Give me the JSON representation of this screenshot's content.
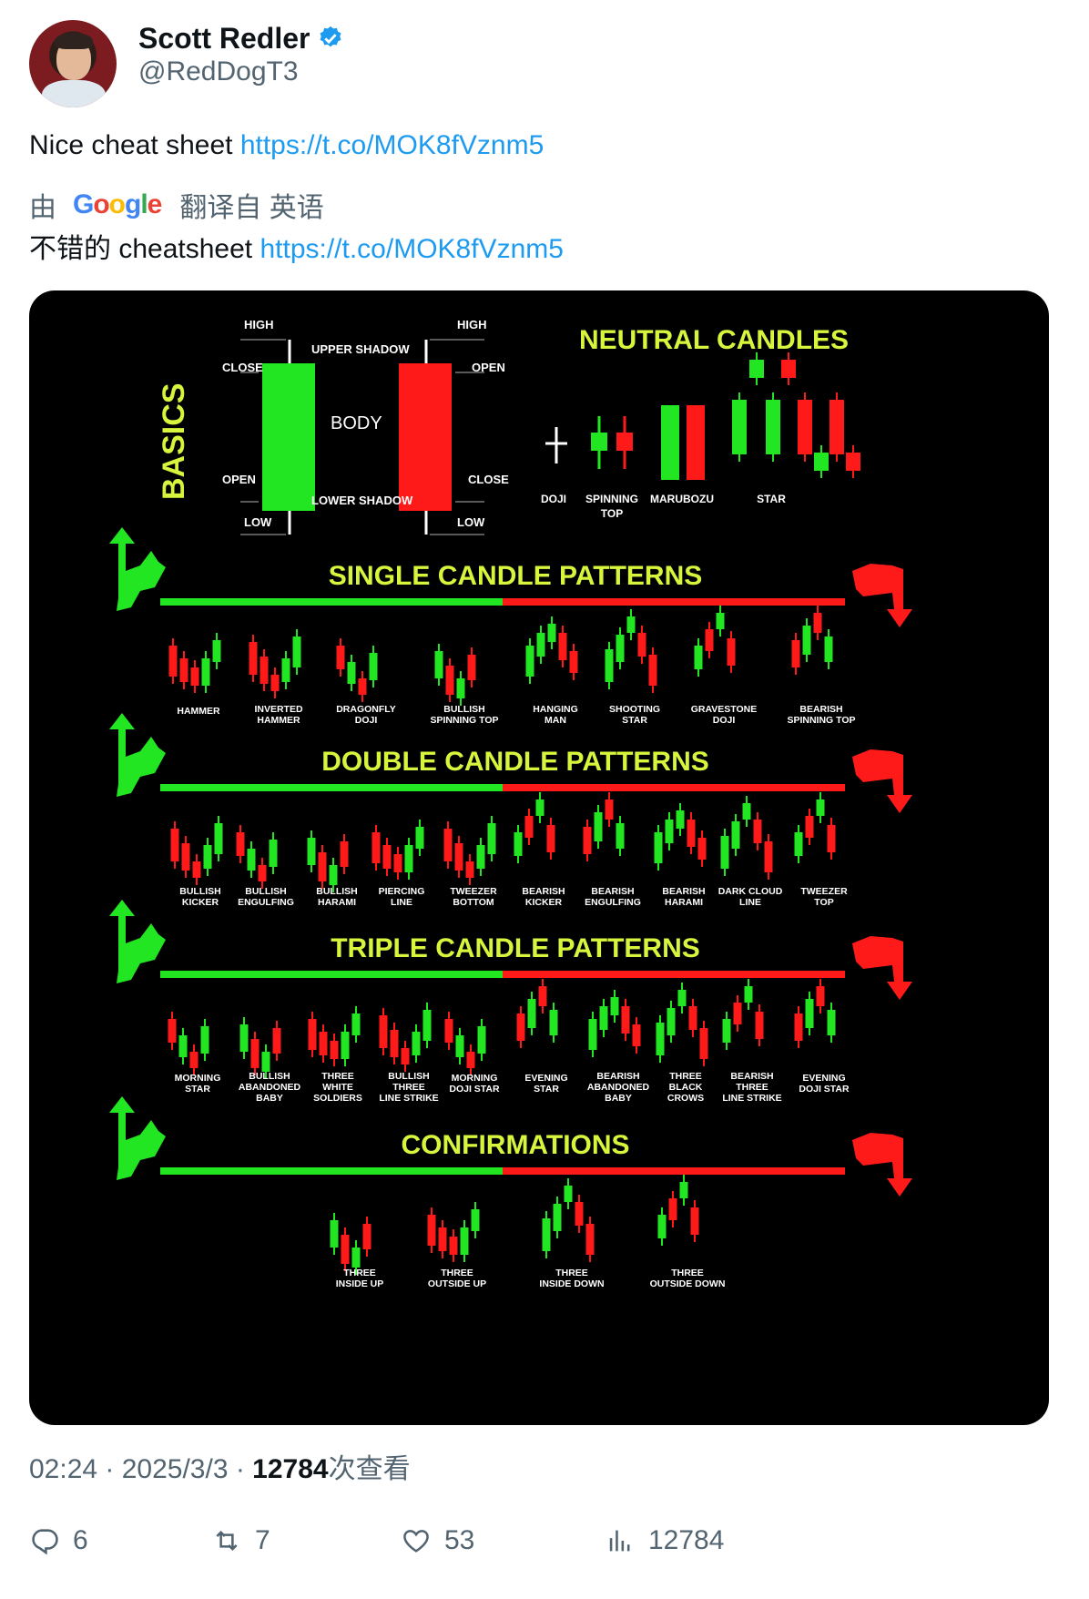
{
  "author": {
    "display_name": "Scott Redler",
    "handle": "@RedDogT3"
  },
  "tweet": {
    "text": "Nice cheat sheet",
    "link": "https://t.co/MOK8fVznm5",
    "translation_prefix": "由",
    "translation_provider": "Google",
    "translation_suffix": "翻译自 英语",
    "translated_text": "不错的 cheatsheet",
    "translated_link": "https://t.co/MOK8fVznm5"
  },
  "image": {
    "basics": {
      "title": "BASICS",
      "high_left": "HIGH",
      "high_right": "HIGH",
      "upper_shadow": "UPPER SHADOW",
      "close_left": "CLOSE",
      "open_right": "OPEN",
      "body": "BODY",
      "open_left": "OPEN",
      "close_right": "CLOSE",
      "lower_shadow": "LOWER SHADOW",
      "low_left": "LOW",
      "low_right": "LOW"
    },
    "neutral": {
      "title": "NEUTRAL CANDLES",
      "labels": [
        "DOJI",
        "SPINNING",
        "TOP",
        "MARUBOZU",
        "STAR"
      ]
    },
    "single": {
      "title": "SINGLE CANDLE PATTERNS",
      "labels": [
        [
          "HAMMER"
        ],
        [
          "INVERTED",
          "HAMMER"
        ],
        [
          "DRAGONFLY",
          "DOJI"
        ],
        [
          "BULLISH",
          "SPINNING TOP"
        ],
        [
          "HANGING",
          "MAN"
        ],
        [
          "SHOOTING",
          "STAR"
        ],
        [
          "GRAVESTONE",
          "DOJI"
        ],
        [
          "BEARISH",
          "SPINNING TOP"
        ]
      ]
    },
    "double": {
      "title": "DOUBLE CANDLE PATTERNS",
      "labels": [
        [
          "BULLISH",
          "KICKER"
        ],
        [
          "BULLISH",
          "ENGULFING"
        ],
        [
          "BULLISH",
          "HARAMI"
        ],
        [
          "PIERCING",
          "LINE"
        ],
        [
          "TWEEZER",
          "BOTTOM"
        ],
        [
          "BEARISH",
          "KICKER"
        ],
        [
          "BEARISH",
          "ENGULFING"
        ],
        [
          "BEARISH",
          "HARAMI"
        ],
        [
          "DARK CLOUD",
          "LINE"
        ],
        [
          "TWEEZER",
          "TOP"
        ]
      ]
    },
    "triple": {
      "title": "TRIPLE CANDLE PATTERNS",
      "labels": [
        [
          "MORNING",
          "STAR"
        ],
        [
          "BULLISH",
          "ABANDONED",
          "BABY"
        ],
        [
          "THREE",
          "WHITE",
          "SOLDIERS"
        ],
        [
          "BULLISH",
          "THREE",
          "LINE STRIKE"
        ],
        [
          "MORNING",
          "DOJI STAR"
        ],
        [
          "EVENING",
          "STAR"
        ],
        [
          "BEARISH",
          "ABANDONED",
          "BABY"
        ],
        [
          "THREE",
          "BLACK",
          "CROWS"
        ],
        [
          "BEARISH",
          "THREE",
          "LINE STRIKE"
        ],
        [
          "EVENING",
          "DOJI STAR"
        ]
      ]
    },
    "confirmations": {
      "title": "CONFIRMATIONS",
      "labels": [
        [
          "THREE",
          "INSIDE UP"
        ],
        [
          "THREE",
          "OUTSIDE UP"
        ],
        [
          "THREE",
          "INSIDE DOWN"
        ],
        [
          "THREE",
          "OUTSIDE DOWN"
        ]
      ]
    },
    "colors": {
      "green": "#22e622",
      "red": "#ff1a1a",
      "yellow": "#d7f53c"
    }
  },
  "meta": {
    "time": "02:24 · 2025/3/3 · ",
    "views_count": "12784",
    "views_label": "次查看"
  },
  "actions": {
    "replies": "6",
    "retweets": "7",
    "likes": "53",
    "views": "12784"
  }
}
